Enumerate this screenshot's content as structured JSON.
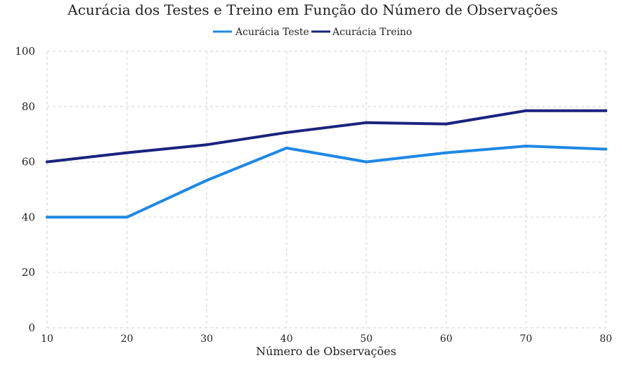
{
  "chart_data": {
    "type": "line",
    "title": "Acurácia dos Testes e Treino em Função do Número de Observações",
    "xlabel": "Número de Observações",
    "ylabel": "",
    "x": [
      10,
      20,
      30,
      40,
      50,
      60,
      70,
      80
    ],
    "xlim": [
      10,
      80
    ],
    "ylim": [
      0,
      100
    ],
    "x_ticks": [
      10,
      20,
      30,
      40,
      50,
      60,
      70,
      80
    ],
    "y_ticks": [
      0,
      20,
      40,
      60,
      80,
      100
    ],
    "grid": true,
    "legend_position": "top-center",
    "series": [
      {
        "name": "Acurácia Teste",
        "color": "#1e88e5",
        "values": [
          40,
          40,
          53.3,
          65,
          60,
          63.3,
          65.7,
          64.6
        ]
      },
      {
        "name": "Acurácia Treino",
        "color": "#1a237e",
        "values": [
          60,
          63.3,
          66.2,
          70.6,
          74.2,
          73.7,
          78.5,
          78.5
        ]
      }
    ]
  }
}
